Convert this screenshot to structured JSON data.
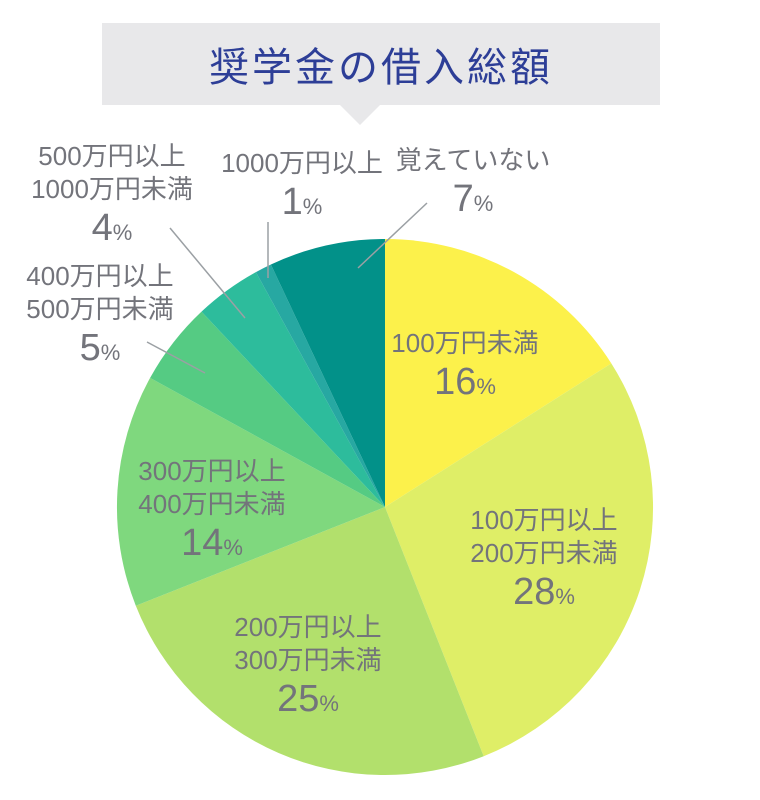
{
  "title": {
    "text": "奨学金の借入総額"
  },
  "percent_sign": "%",
  "colors": {
    "title_bg": "#e8e8ea",
    "title_text": "#2d3e97",
    "label_text": "#73747b",
    "leader_line": "#9ba0a4"
  },
  "chart_data": {
    "type": "pie",
    "title": "奨学金の借入総額",
    "start_angle_deg": 0,
    "direction": "clockwise",
    "unit": "%",
    "legend_position": "none",
    "slices": [
      {
        "label": "100万円未満",
        "label_lines": [
          "100万円未満"
        ],
        "value": 16,
        "color": "#fcf14b",
        "label_position": "inside"
      },
      {
        "label": "100万円以上200万円未満",
        "label_lines": [
          "100万円以上",
          "200万円未満"
        ],
        "value": 28,
        "color": "#dfee67",
        "label_position": "inside"
      },
      {
        "label": "200万円以上300万円未満",
        "label_lines": [
          "200万円以上",
          "300万円未満"
        ],
        "value": 25,
        "color": "#b2e06c",
        "label_position": "inside"
      },
      {
        "label": "300万円以上400万円未満",
        "label_lines": [
          "300万円以上",
          "400万円未満"
        ],
        "value": 14,
        "color": "#7fd87e",
        "label_position": "inside"
      },
      {
        "label": "400万円以上500万円未満",
        "label_lines": [
          "400万円以上",
          "500万円未満"
        ],
        "value": 5,
        "color": "#55cb83",
        "label_position": "outside"
      },
      {
        "label": "500万円以上1000万円未満",
        "label_lines": [
          "500万円以上",
          "1000万円未満"
        ],
        "value": 4,
        "color": "#2dbc9c",
        "label_position": "outside"
      },
      {
        "label": "1000万円以上",
        "label_lines": [
          "1000万円以上"
        ],
        "value": 1,
        "color": "#27a8a2",
        "label_position": "outside"
      },
      {
        "label": "覚えていない",
        "label_lines": [
          "覚えていない"
        ],
        "value": 7,
        "color": "#029189",
        "label_position": "outside"
      }
    ]
  }
}
